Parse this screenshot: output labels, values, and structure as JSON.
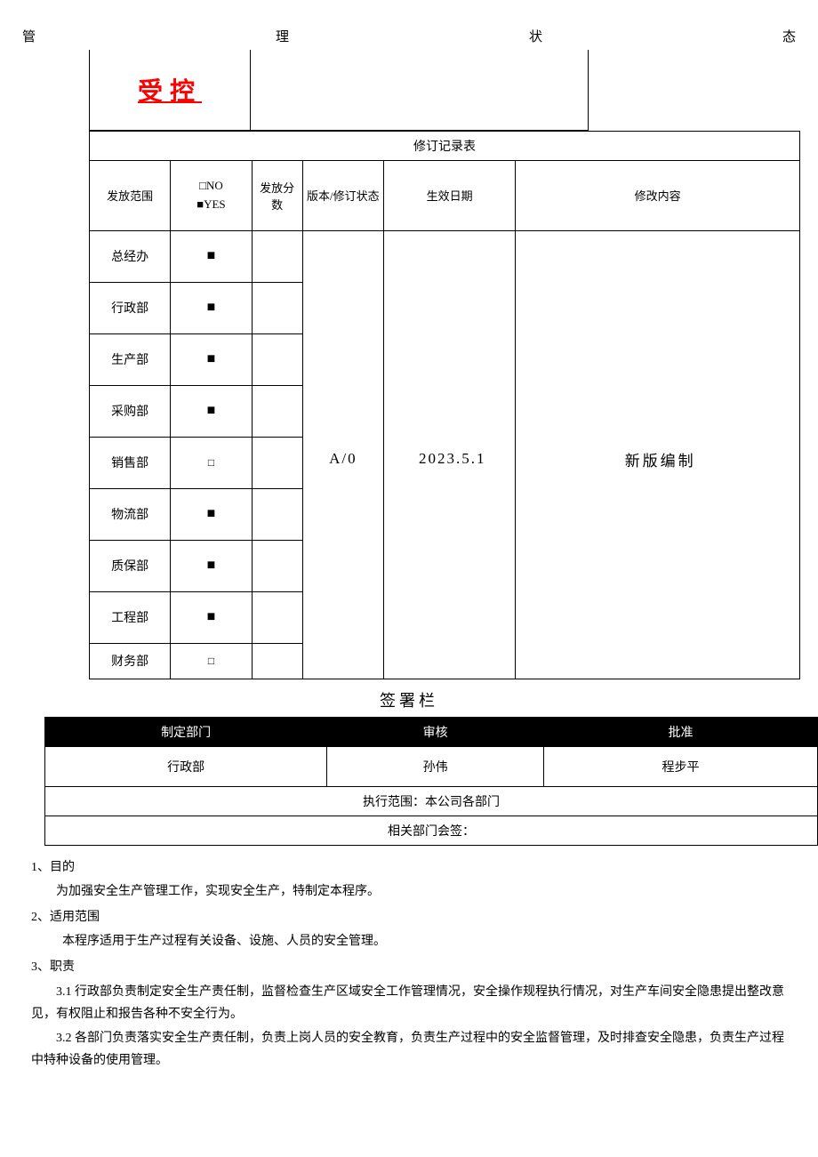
{
  "header": {
    "c1": "管",
    "c2": "理",
    "c3": "状",
    "c4": "态"
  },
  "status": {
    "label": "受控"
  },
  "revision": {
    "caption": "修订记录表",
    "headers": {
      "scope": "发放范围",
      "checkbox_no": "□NO",
      "checkbox_yes": "■YES",
      "dist": "发放分数",
      "version": "版本/修订状态",
      "date": "生效日期",
      "content": "修改内容"
    },
    "version_value": "A/0",
    "date_value": "2023.5.1",
    "content_value": "新版编制",
    "departments": [
      {
        "name": "总经办",
        "checked": true
      },
      {
        "name": "行政部",
        "checked": true
      },
      {
        "name": "生产部",
        "checked": true
      },
      {
        "name": "采购部",
        "checked": true
      },
      {
        "name": "销售部",
        "checked": false
      },
      {
        "name": "物流部",
        "checked": true
      },
      {
        "name": "质保部",
        "checked": true
      },
      {
        "name": "工程部",
        "checked": true
      },
      {
        "name": "财务部",
        "checked": false
      }
    ]
  },
  "signature": {
    "title": "签署栏",
    "headers": {
      "dept": "制定部门",
      "review": "审核",
      "approve": "批准"
    },
    "values": {
      "dept": "行政部",
      "review": "孙伟",
      "approve": "程步平"
    },
    "scope_label": "执行范围：本公司各部门",
    "cosign_label": "相关部门会签："
  },
  "body": {
    "s1_title": "1、目的",
    "s1_text": "为加强安全生产管理工作，实现安全生产，特制定本程序。",
    "s2_title": "2、适用范围",
    "s2_text": "本程序适用于生产过程有关设备、设施、人员的安全管理。",
    "s3_title": "3、职责",
    "s3_1": "3.1 行政部负责制定安全生产责任制，监督检查生产区域安全工作管理情况，安全操作规程执行情况，对生产车间安全隐患提出整改意见，有权阻止和报告各种不安全行为。",
    "s3_2": "3.2 各部门负责落实安全生产责任制，负责上岗人员的安全教育，负责生产过程中的安全监督管理，及时排查安全隐患，负责生产过程中特种设备的使用管理。"
  },
  "symbols": {
    "filled": "■",
    "empty": "□"
  }
}
